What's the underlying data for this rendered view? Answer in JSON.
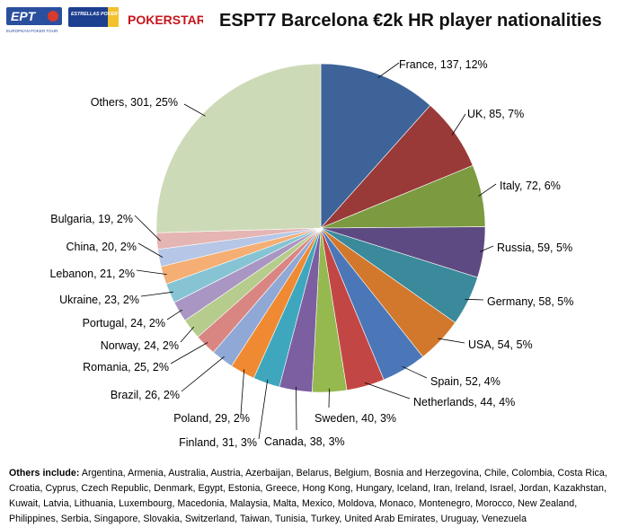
{
  "logos": {
    "ept_text": "EPT",
    "ept_subtitle": "EUROPEAN POKER TOUR",
    "estrellas_text": "ESTRELLAS POKER TOUR",
    "pokerstars_text": "POKERSTARS"
  },
  "colors": {
    "France": "#3d6399",
    "UK": "#993a38",
    "Italy": "#7c9a3f",
    "Russia": "#5e4a82",
    "Germany": "#3a8a9c",
    "USA": "#d2782d",
    "Spain": "#4b77b8",
    "Netherlands": "#c24744",
    "Sweden": "#95b84f",
    "Canada": "#7b5fa0",
    "Finland": "#3ea7bd",
    "Poland": "#ef8a33",
    "Brazil": "#8fa8d6",
    "Romania": "#d98683",
    "Norway": "#b6cc8d",
    "Portugal": "#a996c2",
    "Ukraine": "#86c4d4",
    "Lebanon": "#f5ae73",
    "China": "#b6c6e6",
    "Bulgaria": "#e5b5b3",
    "Others": "#cddab7"
  },
  "chart_data": {
    "type": "pie",
    "title": "ESPT7 Barcelona €2k HR player nationalities",
    "slices": [
      {
        "label": "France",
        "value": 137,
        "percent": "12%",
        "text": "France, 137, 12%"
      },
      {
        "label": "UK",
        "value": 85,
        "percent": "7%",
        "text": "UK, 85, 7%"
      },
      {
        "label": "Italy",
        "value": 72,
        "percent": "6%",
        "text": "Italy, 72, 6%"
      },
      {
        "label": "Russia",
        "value": 59,
        "percent": "5%",
        "text": "Russia, 59, 5%"
      },
      {
        "label": "Germany",
        "value": 58,
        "percent": "5%",
        "text": "Germany, 58, 5%"
      },
      {
        "label": "USA",
        "value": 54,
        "percent": "5%",
        "text": "USA, 54, 5%"
      },
      {
        "label": "Spain",
        "value": 52,
        "percent": "4%",
        "text": "Spain, 52, 4%"
      },
      {
        "label": "Netherlands",
        "value": 44,
        "percent": "4%",
        "text": "Netherlands, 44, 4%"
      },
      {
        "label": "Sweden",
        "value": 40,
        "percent": "3%",
        "text": "Sweden, 40, 3%"
      },
      {
        "label": "Canada",
        "value": 38,
        "percent": "3%",
        "text": "Canada, 38, 3%"
      },
      {
        "label": "Finland",
        "value": 31,
        "percent": "3%",
        "text": "Finland, 31, 3%"
      },
      {
        "label": "Poland",
        "value": 29,
        "percent": "2%",
        "text": "Poland, 29, 2%"
      },
      {
        "label": "Brazil",
        "value": 26,
        "percent": "2%",
        "text": "Brazil, 26, 2%"
      },
      {
        "label": "Romania",
        "value": 25,
        "percent": "2%",
        "text": "Romania, 25, 2%"
      },
      {
        "label": "Norway",
        "value": 24,
        "percent": "2%",
        "text": "Norway, 24, 2%"
      },
      {
        "label": "Portugal",
        "value": 24,
        "percent": "2%",
        "text": "Portugal, 24, 2%"
      },
      {
        "label": "Ukraine",
        "value": 23,
        "percent": "2%",
        "text": "Ukraine, 23, 2%"
      },
      {
        "label": "Lebanon",
        "value": 21,
        "percent": "2%",
        "text": "Lebanon, 21, 2%"
      },
      {
        "label": "China",
        "value": 20,
        "percent": "2%",
        "text": "China, 20, 2%"
      },
      {
        "label": "Bulgaria",
        "value": 19,
        "percent": "2%",
        "text": "Bulgaria, 19, 2%"
      },
      {
        "label": "Others",
        "value": 301,
        "percent": "25%",
        "text": "Others, 301, 25%"
      }
    ]
  },
  "note": {
    "prefix": "Others include:",
    "text": "Argentina, Armenia, Australia, Austria, Azerbaijan, Belarus, Belgium, Bosnia and Herzegovina, Chile, Colombia, Costa Rica, Croatia, Cyprus, Czech Republic, Denmark, Egypt, Estonia, Greece, Hong Kong, Hungary, Iceland, Iran, Ireland, Israel, Jordan, Kazakhstan, Kuwait, Latvia, Lithuania, Luxembourg, Macedonia, Malaysia, Malta, Mexico, Moldova, Monaco, Montenegro, Morocco, New Zealand, Philippines, Serbia, Singapore, Slovakia, Switzerland, Taiwan, Tunisia, Turkey, United Arab Emirates, Uruguay, Venezuela"
  }
}
